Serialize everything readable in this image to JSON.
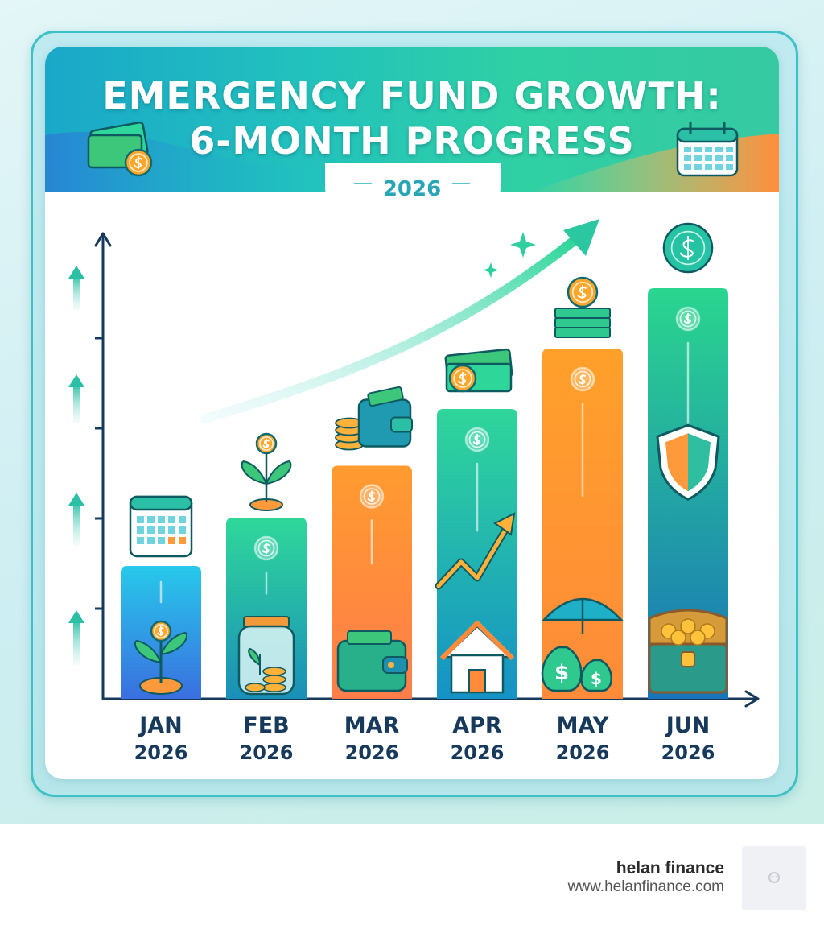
{
  "chart_data": {
    "type": "bar",
    "title": "EMERGENCY FUND GROWTH:",
    "subtitle": "6-MONTH PROGRESS",
    "period": "2026",
    "categories": [
      "JAN",
      "FEB",
      "MAR",
      "APR",
      "MAY",
      "JUN"
    ],
    "category_years": [
      "2026",
      "2026",
      "2026",
      "2026",
      "2026",
      "2026"
    ],
    "values": [
      1.1,
      1.5,
      1.93,
      2.4,
      2.9,
      3.4
    ],
    "ylim": [
      0,
      3.4
    ],
    "xlabel": "",
    "ylabel": "",
    "y_ticks_count": 4,
    "grid": false,
    "trend": "up",
    "bar_icons": [
      "sprout-coin-icon",
      "coin-jar-icon",
      "wallet-icon",
      "house-growth-icon",
      "money-bags-umbrella-icon",
      "treasure-chest-shield-icon"
    ],
    "above_bar_icons": [
      "calendar-icon",
      "plant-coin-icon",
      "coins-wallet-icon",
      "cash-coin-icon",
      "coin-stack-icon",
      "dollar-coin-icon"
    ],
    "bar_gradients": [
      [
        "#27c9ea",
        "#3a6fe0"
      ],
      [
        "#2fd89a",
        "#1a8fb8"
      ],
      [
        "#ff9b2f",
        "#ff7d4a"
      ],
      [
        "#2fd69a",
        "#1592c6"
      ],
      [
        "#ffa02a",
        "#ff8b3a"
      ],
      [
        "#2ad68f",
        "#1a73b8"
      ]
    ]
  },
  "branding": {
    "name": "helan finance",
    "url": "www.helanfinance.com"
  },
  "colors": {
    "axis": "#163a5c",
    "banner_start": "#1aa8c9",
    "banner_end": "#36c9a2",
    "accent_orange": "#ff8a3a",
    "accent_green": "#2fd69a"
  }
}
